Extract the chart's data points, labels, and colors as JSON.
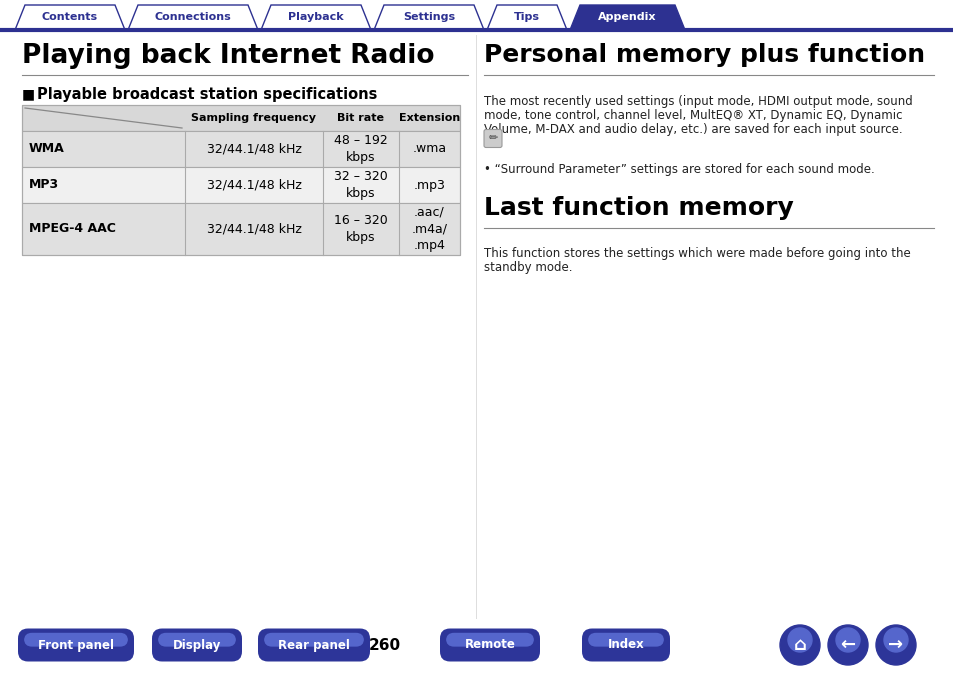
{
  "bg_color": "#ffffff",
  "nav_tabs": [
    "Contents",
    "Connections",
    "Playback",
    "Settings",
    "Tips",
    "Appendix"
  ],
  "nav_active": "Appendix",
  "nav_color_active": "#2d3191",
  "nav_color_inactive": "#ffffff",
  "nav_text_color_active": "#ffffff",
  "nav_text_color_inactive": "#2d3191",
  "nav_border_color": "#2d3191",
  "left_title": "Playing back Internet Radio",
  "left_section": "Playable broadcast station specifications",
  "table_headers": [
    "Sampling frequency",
    "Bit rate",
    "Extension"
  ],
  "table_rows": [
    [
      "WMA",
      "32/44.1/48 kHz",
      "48 – 192\nkbps",
      ".wma"
    ],
    [
      "MP3",
      "32/44.1/48 kHz",
      "32 – 320\nkbps",
      ".mp3"
    ],
    [
      "MPEG-4 AAC",
      "32/44.1/48 kHz",
      "16 – 320\nkbps",
      ".aac/\n.m4a/\n.mp4"
    ]
  ],
  "table_odd_bg": "#e0e0e0",
  "table_even_bg": "#f0f0f0",
  "table_header_bg": "#d8d8d8",
  "right_title": "Personal memory plus function",
  "right_para_lines": [
    "The most recently used settings (input mode, HDMI output mode, sound",
    "mode, tone control, channel level, MultEQ® XT, Dynamic EQ, Dynamic",
    "Volume, M-DAX and audio delay, etc.) are saved for each input source."
  ],
  "right_note": "• “Surround Parameter” settings are stored for each sound mode.",
  "right_title2": "Last function memory",
  "right_para2_lines": [
    "This function stores the settings which were made before going into the",
    "standby mode."
  ],
  "bottom_buttons": [
    "Front panel",
    "Display",
    "Rear panel",
    "Remote",
    "Index"
  ],
  "page_number": "260",
  "button_color": "#2d3599",
  "button_text_color": "#ffffff",
  "title_color": "#000000",
  "body_color": "#222222",
  "tab_widths": [
    110,
    130,
    110,
    110,
    80,
    115
  ]
}
